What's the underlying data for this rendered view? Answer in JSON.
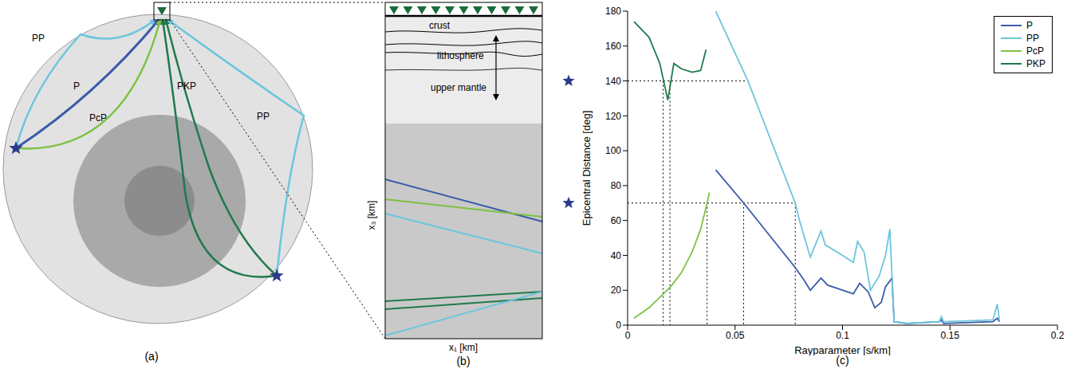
{
  "panels": {
    "a": {
      "label": "(a)",
      "rays": [
        "PP",
        "P",
        "PcP",
        "PKP",
        "PP"
      ]
    },
    "b": {
      "label": "(b)",
      "layers": [
        "crust",
        "lithosphere",
        "upper mantle"
      ],
      "x_label": "x₁ [km]",
      "y_label": "x₃ [km]"
    }
  },
  "chart_data": {
    "type": "line",
    "panel_label": "(c)",
    "x_label": "Rayparameter [s/km]",
    "y_label": "Epicentral Distance [deg]",
    "xlim": [
      0,
      0.2
    ],
    "ylim": [
      0,
      180
    ],
    "xticks": [
      0,
      0.05,
      0.1,
      0.15,
      0.2
    ],
    "yticks": [
      0,
      20,
      40,
      60,
      80,
      100,
      120,
      140,
      160,
      180
    ],
    "grid": false,
    "legend": "upper right",
    "series": [
      {
        "name": "P",
        "color": "#3b5ba9",
        "x": [
          0.041,
          0.054,
          0.078,
          0.082,
          0.085,
          0.09,
          0.093,
          0.1,
          0.105,
          0.108,
          0.112,
          0.115,
          0.118,
          0.12,
          0.123,
          0.124,
          0.13,
          0.145,
          0.146,
          0.147,
          0.17,
          0.172,
          0.173
        ],
        "values": [
          89,
          70,
          33,
          26,
          20,
          27,
          23,
          20,
          18,
          24,
          19,
          10,
          13,
          22,
          27,
          2,
          1,
          2,
          3,
          1,
          2,
          4,
          2
        ]
      },
      {
        "name": "PP",
        "color": "#6cc6dc",
        "x": [
          0.041,
          0.056,
          0.078,
          0.08,
          0.085,
          0.088,
          0.09,
          0.092,
          0.1,
          0.105,
          0.107,
          0.11,
          0.113,
          0.117,
          0.12,
          0.122,
          0.124,
          0.13,
          0.145,
          0.146,
          0.147,
          0.17,
          0.172,
          0.173
        ],
        "values": [
          180,
          140,
          70,
          60,
          39,
          48,
          54,
          46,
          40,
          36,
          48,
          42,
          20,
          28,
          40,
          55,
          2,
          1,
          2,
          5,
          2,
          3,
          12,
          3
        ]
      },
      {
        "name": "PcP",
        "color": "#7dc242",
        "x": [
          0.003,
          0.01,
          0.02,
          0.025,
          0.03,
          0.034,
          0.037,
          0.038
        ],
        "values": [
          4,
          10,
          22,
          30,
          42,
          55,
          70,
          76
        ]
      },
      {
        "name": "PKP",
        "color": "#1f7a4d",
        "x": [
          0.003,
          0.01,
          0.015,
          0.0187,
          0.0215,
          0.025,
          0.03,
          0.034,
          0.0365
        ],
        "values": [
          174,
          165,
          150,
          129,
          150,
          147,
          145,
          146,
          158
        ]
      }
    ],
    "guides": [
      {
        "y": 140,
        "x": [
          0.0165,
          0.0197
        ],
        "x_end": 0.056
      },
      {
        "y": 70,
        "x": [
          0.037,
          0.054,
          0.078
        ],
        "x_end": 0.078
      }
    ]
  }
}
